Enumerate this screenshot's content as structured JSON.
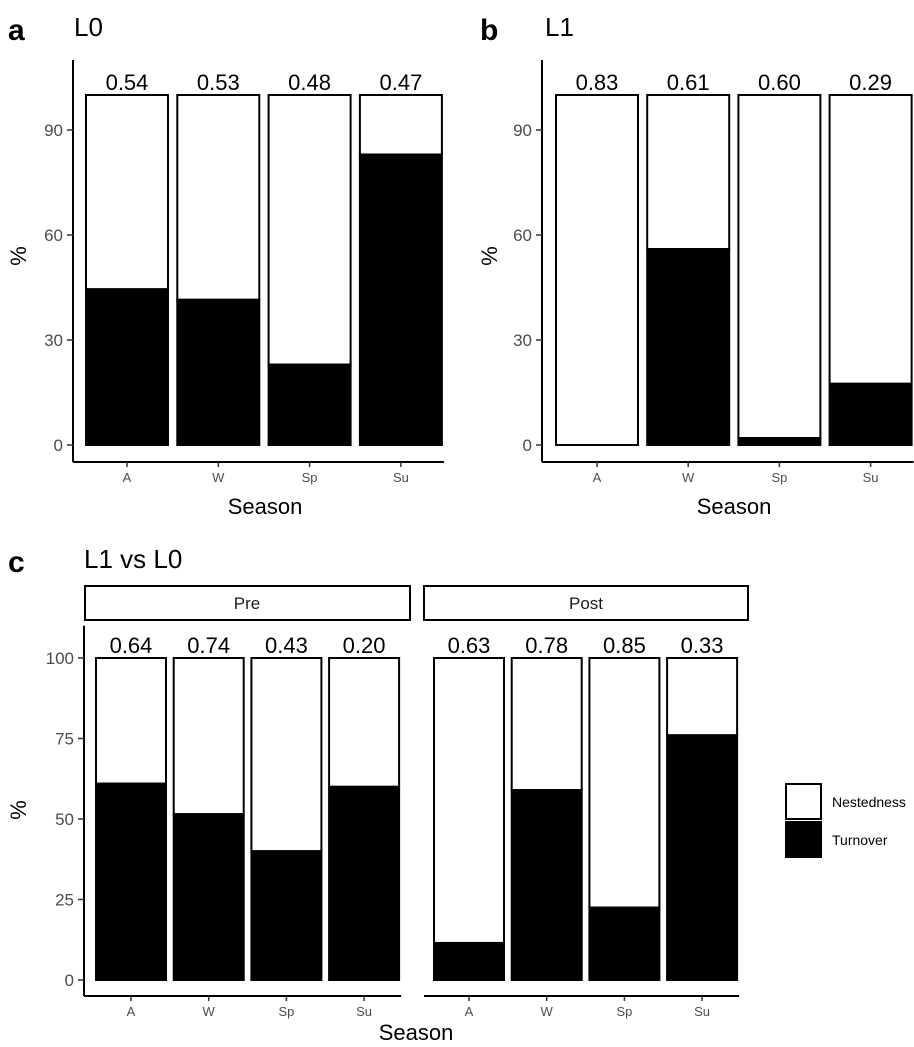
{
  "panels": {
    "a": {
      "letter": "a",
      "title": "L0",
      "ylabel": "%",
      "xlabel": "Season"
    },
    "b": {
      "letter": "b",
      "title": "L1",
      "ylabel": "%",
      "xlabel": "Season"
    },
    "c": {
      "letter": "c",
      "title": "L1 vs L0",
      "ylabel": "%",
      "xlabel": "Season",
      "strips": [
        "Pre",
        "Post"
      ]
    }
  },
  "legend": {
    "items": [
      {
        "label": "Nestedness",
        "color": "#ffffff"
      },
      {
        "label": "Turnover",
        "color": "#000000"
      }
    ]
  },
  "colors": {
    "nestedness": "#ffffff",
    "turnover": "#000000",
    "axis": "#000000",
    "tick_text": "#4d4d4d"
  },
  "chart_data": [
    {
      "id": "a",
      "type": "bar",
      "stacked": true,
      "title": "L0",
      "xlabel": "Season",
      "ylabel": "%",
      "categories": [
        "A",
        "W",
        "Sp",
        "Su"
      ],
      "ylim": [
        0,
        110
      ],
      "yticks": [
        0,
        30,
        60,
        90
      ],
      "series": [
        {
          "name": "Turnover",
          "values": [
            44.5,
            41.5,
            23,
            83
          ]
        },
        {
          "name": "Nestedness",
          "values": [
            55.5,
            58.5,
            77,
            17
          ]
        }
      ],
      "bar_labels": [
        "0.54",
        "0.53",
        "0.48",
        "0.47"
      ]
    },
    {
      "id": "b",
      "type": "bar",
      "stacked": true,
      "title": "L1",
      "xlabel": "Season",
      "ylabel": "%",
      "categories": [
        "A",
        "W",
        "Sp",
        "Su"
      ],
      "ylim": [
        0,
        110
      ],
      "yticks": [
        0,
        30,
        60,
        90
      ],
      "series": [
        {
          "name": "Turnover",
          "values": [
            0,
            56,
            2,
            17.5
          ]
        },
        {
          "name": "Nestedness",
          "values": [
            100,
            44,
            98,
            82.5
          ]
        }
      ],
      "bar_labels": [
        "0.83",
        "0.61",
        "0.60",
        "0.29"
      ]
    },
    {
      "id": "c-pre",
      "type": "bar",
      "stacked": true,
      "facet": "Pre",
      "xlabel": "Season",
      "ylabel": "%",
      "categories": [
        "A",
        "W",
        "Sp",
        "Su"
      ],
      "ylim": [
        0,
        110
      ],
      "yticks": [
        0,
        25,
        50,
        75,
        100
      ],
      "series": [
        {
          "name": "Turnover",
          "values": [
            61,
            51.5,
            40,
            60
          ]
        },
        {
          "name": "Nestedness",
          "values": [
            39,
            48.5,
            60,
            40
          ]
        }
      ],
      "bar_labels": [
        "0.64",
        "0.74",
        "0.43",
        "0.20"
      ]
    },
    {
      "id": "c-post",
      "type": "bar",
      "stacked": true,
      "facet": "Post",
      "xlabel": "Season",
      "ylabel": "%",
      "categories": [
        "A",
        "W",
        "Sp",
        "Su"
      ],
      "ylim": [
        0,
        110
      ],
      "yticks": [
        0,
        25,
        50,
        75,
        100
      ],
      "series": [
        {
          "name": "Turnover",
          "values": [
            11.5,
            59,
            22.5,
            76
          ]
        },
        {
          "name": "Nestedness",
          "values": [
            88.5,
            41,
            77.5,
            24
          ]
        }
      ],
      "bar_labels": [
        "0.63",
        "0.78",
        "0.85",
        "0.33"
      ]
    }
  ]
}
